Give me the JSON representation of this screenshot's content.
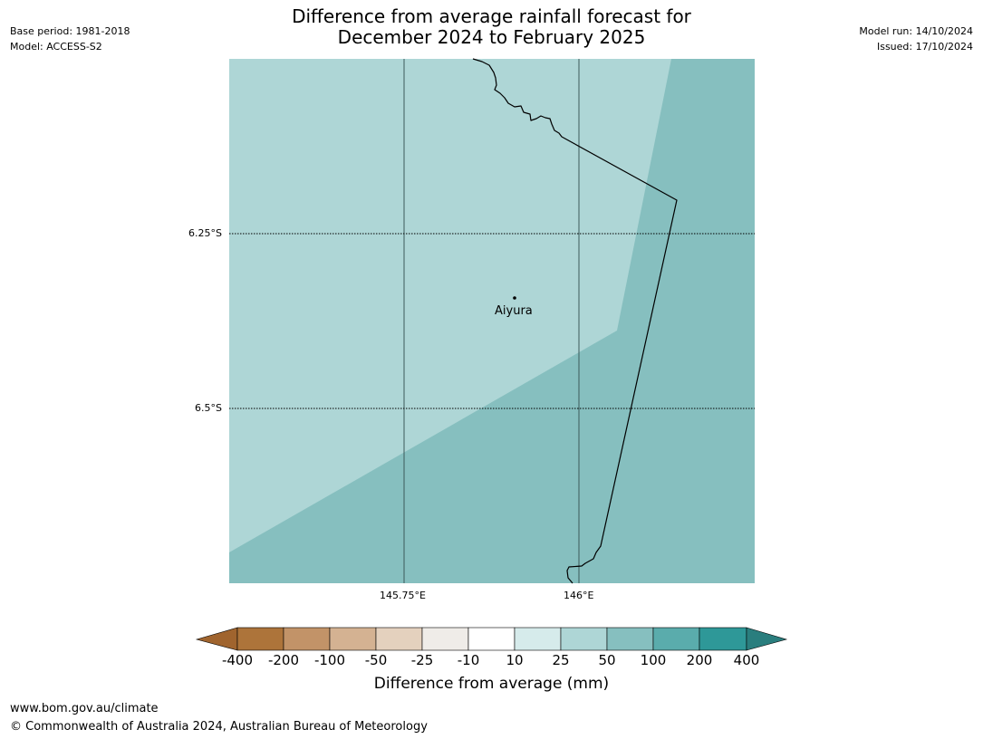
{
  "header": {
    "base_period": "Base period: 1981-2018",
    "model": "Model: ACCESS-S2",
    "title_line1": "Difference from average rainfall forecast for",
    "title_line2": "December 2024 to February 2025",
    "model_run": "Model run: 14/10/2024",
    "issued": "Issued: 17/10/2024"
  },
  "map": {
    "lat_labels": [
      "6.25°S",
      "6.5°S"
    ],
    "lon_labels": [
      "145.75°E",
      "146°E"
    ],
    "place_label": "Aiyura",
    "fill_colors": {
      "light_band": "#aed6d6",
      "dark_band": "#86bfbf"
    }
  },
  "colorbar": {
    "title": "Difference from average (mm)",
    "ticks": [
      "-400",
      "-200",
      "-100",
      "-50",
      "-25",
      "-10",
      "10",
      "25",
      "50",
      "100",
      "200",
      "400"
    ],
    "colors": [
      "#a0642e",
      "#ad743a",
      "#c29368",
      "#d4b292",
      "#e4d1be",
      "#efece8",
      "#ffffff",
      "#d6ebeb",
      "#aed6d6",
      "#86bfbf",
      "#5aacac",
      "#2e9898",
      "#2a7e7e"
    ]
  },
  "footer": {
    "url": "www.bom.gov.au/climate",
    "copyright": "© Commonwealth of Australia 2024, Australian Bureau of Meteorology"
  }
}
